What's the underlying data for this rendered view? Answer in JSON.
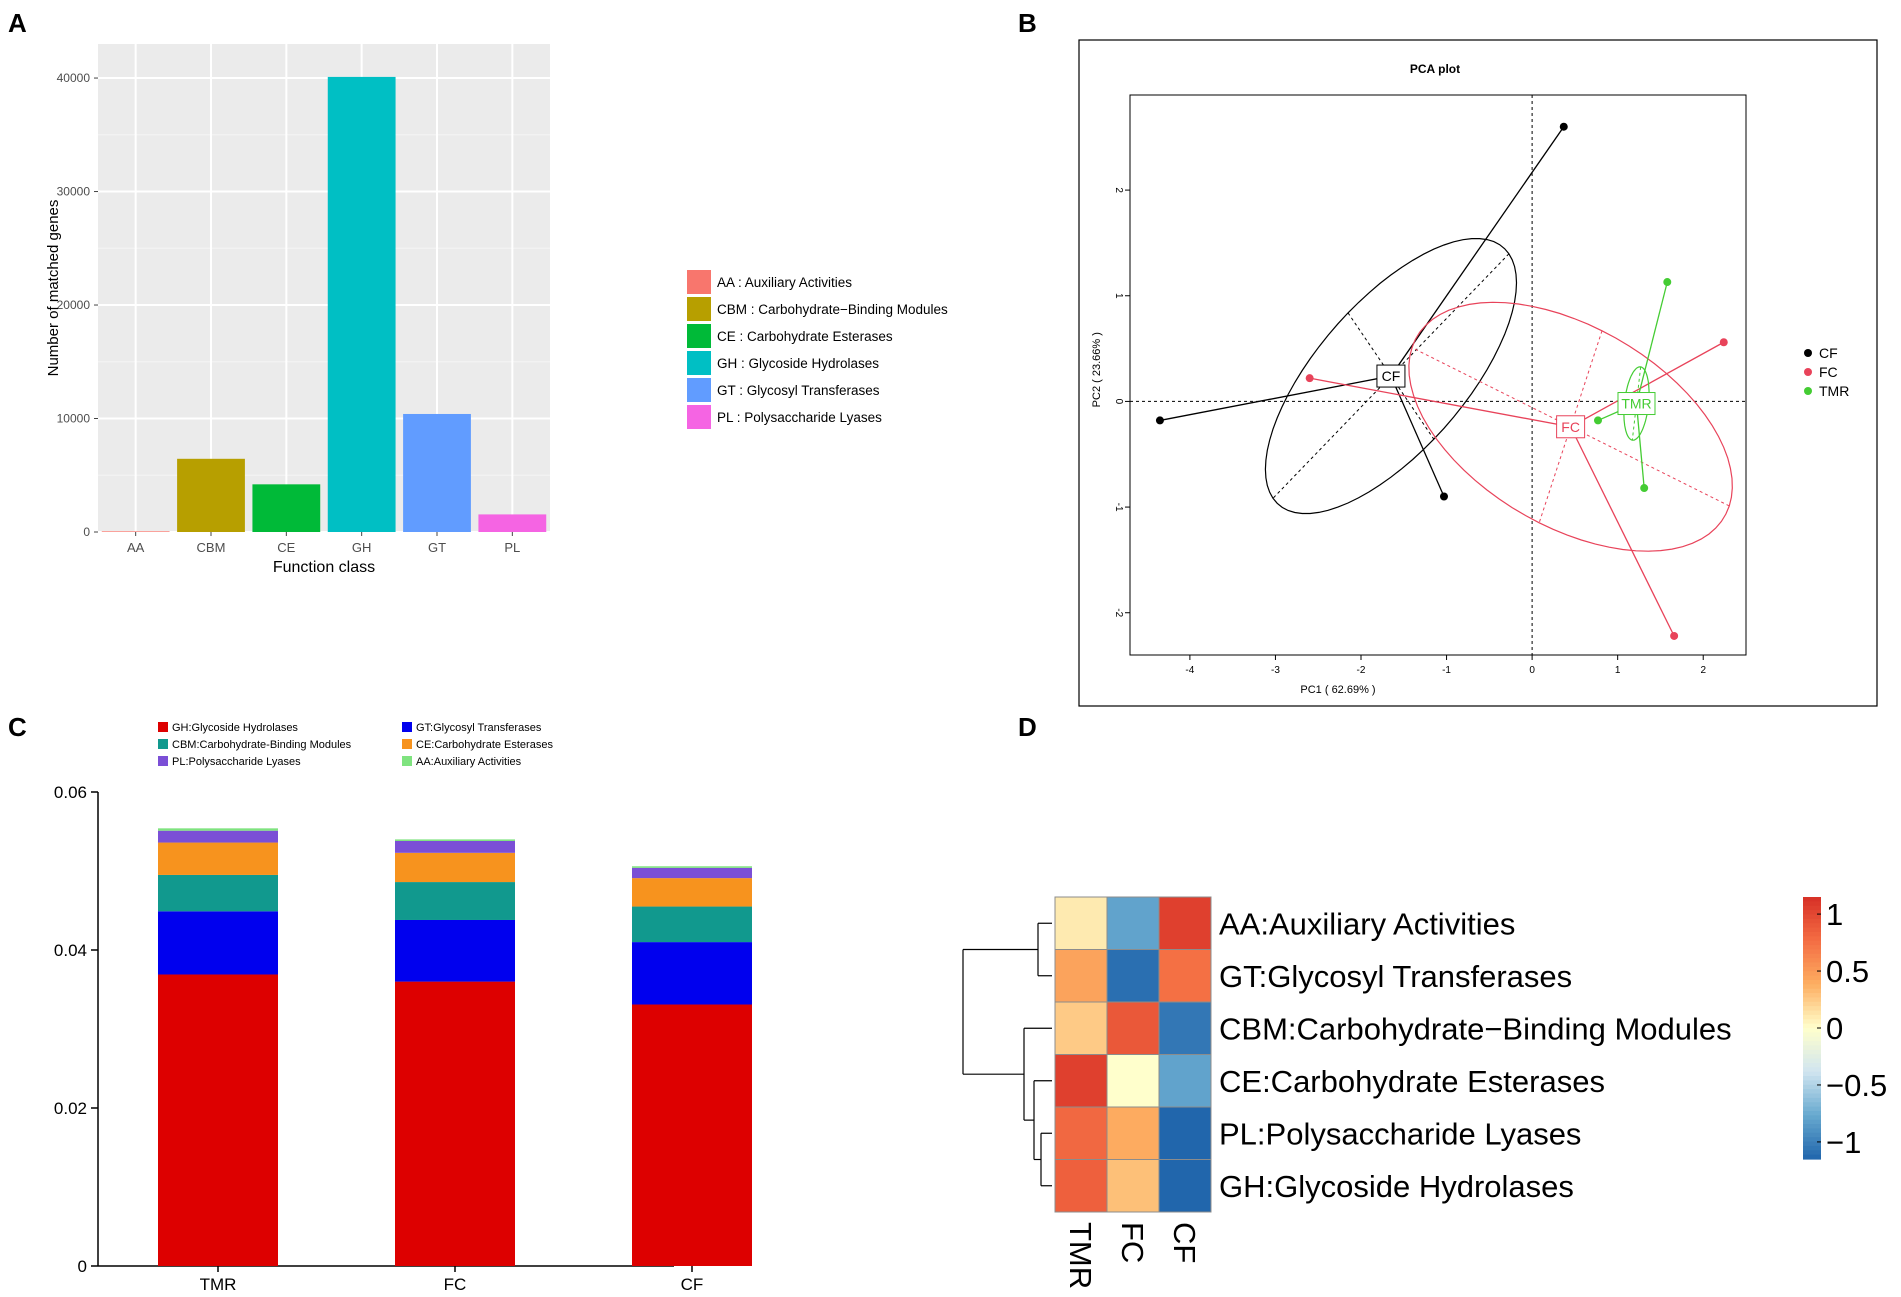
{
  "panels": {
    "a": "A",
    "b": "B",
    "c": "C",
    "d": "D"
  },
  "chart_data": [
    {
      "panel": "A",
      "type": "bar",
      "xlabel": "Function class",
      "ylabel": "Number of matched genes",
      "ylim": [
        0,
        43000
      ],
      "yticks": [
        {
          "v": 0,
          "label": "0"
        },
        {
          "v": 10000,
          "label": "10000"
        },
        {
          "v": 20000,
          "label": "20000"
        },
        {
          "v": 30000,
          "label": "30000"
        },
        {
          "v": 40000,
          "label": "40000"
        }
      ],
      "categories": [
        "AA",
        "CBM",
        "CE",
        "GH",
        "GT",
        "PL"
      ],
      "values": [
        60,
        6450,
        4200,
        40100,
        10400,
        1550
      ],
      "colors": [
        "#f8766d",
        "#b79f00",
        "#00ba38",
        "#00bfc4",
        "#619cff",
        "#f564e3"
      ],
      "legend": [
        "AA : Auxiliary Activities",
        "CBM : Carbohydrate−Binding Modules",
        "CE : Carbohydrate Esterases",
        "GH : Glycoside Hydrolases",
        "GT : Glycosyl Transferases",
        "PL : Polysaccharide Lyases"
      ]
    },
    {
      "panel": "B",
      "type": "scatter",
      "title": "PCA plot",
      "xlabel": "PC1 ( 62.69% )",
      "ylabel": "PC2 ( 23.66% )",
      "xlim": [
        -4.7,
        2.5
      ],
      "ylim": [
        -2.4,
        2.9
      ],
      "xticks": [
        {
          "v": -4,
          "label": "-4"
        },
        {
          "v": -3,
          "label": "-3"
        },
        {
          "v": -2,
          "label": "-2"
        },
        {
          "v": -1,
          "label": "-1"
        },
        {
          "v": 0,
          "label": "0"
        },
        {
          "v": 1,
          "label": "1"
        },
        {
          "v": 2,
          "label": "2"
        }
      ],
      "yticks": [
        {
          "v": -2,
          "label": "-2"
        },
        {
          "v": -1,
          "label": "-1"
        },
        {
          "v": 0,
          "label": "0"
        },
        {
          "v": 1,
          "label": "1"
        },
        {
          "v": 2,
          "label": "2"
        }
      ],
      "groups": [
        {
          "name": "CF",
          "color": "#000000",
          "centroid": [
            -1.65,
            0.24
          ],
          "points": [
            [
              0.37,
              2.6
            ],
            [
              -4.35,
              -0.18
            ],
            [
              -1.03,
              -0.9
            ]
          ],
          "ellipse": {
            "cx": -1.65,
            "cy": 0.24,
            "a": 1.8,
            "b": 0.78,
            "angle": 40
          }
        },
        {
          "name": "FC",
          "color": "#e8435a",
          "centroid": [
            0.45,
            -0.24
          ],
          "points": [
            [
              -2.6,
              0.22
            ],
            [
              2.24,
              0.56
            ],
            [
              1.66,
              -2.22
            ]
          ],
          "ellipse": {
            "cx": 0.45,
            "cy": -0.24,
            "a": 2.0,
            "b": 0.98,
            "angle": -22
          }
        },
        {
          "name": "TMR",
          "color": "#44cc33",
          "centroid": [
            1.22,
            -0.02
          ],
          "points": [
            [
              1.58,
              1.13
            ],
            [
              0.77,
              -0.18
            ],
            [
              1.31,
              -0.82
            ]
          ],
          "ellipse": {
            "cx": 1.22,
            "cy": -0.02,
            "a": 0.35,
            "b": 0.14,
            "angle": 82
          }
        }
      ]
    },
    {
      "panel": "C",
      "type": "bar",
      "stacked": true,
      "categories": [
        "TMR",
        "FC",
        "CF"
      ],
      "ylim": [
        0,
        0.06
      ],
      "yticks": [
        {
          "v": 0,
          "label": "0"
        },
        {
          "v": 0.02,
          "label": "0.02"
        },
        {
          "v": 0.04,
          "label": "0.04"
        },
        {
          "v": 0.06,
          "label": "0.06"
        }
      ],
      "series": [
        {
          "name": "GH:Glycoside Hydrolases",
          "color": "#dd0000",
          "values": [
            0.0369,
            0.036,
            0.0331
          ]
        },
        {
          "name": "GT:Glycosyl Transferases",
          "color": "#0000ee",
          "values": [
            0.008,
            0.0078,
            0.0079
          ]
        },
        {
          "name": "CBM:Carbohydrate-Binding Modules",
          "color": "#11998e",
          "values": [
            0.0046,
            0.0048,
            0.0045
          ]
        },
        {
          "name": "CE:Carbohydrate Esterases",
          "color": "#f7931e",
          "values": [
            0.0041,
            0.0037,
            0.0036
          ]
        },
        {
          "name": "PL:Polysaccharide Lyases",
          "color": "#7b4fd6",
          "values": [
            0.0015,
            0.0015,
            0.0013
          ]
        },
        {
          "name": "AA:Auxiliary Activities",
          "color": "#7fe37f",
          "values": [
            0.0003,
            0.0002,
            0.0002
          ]
        }
      ]
    },
    {
      "panel": "D",
      "type": "heatmap",
      "columns": [
        "TMR",
        "FC",
        "CF"
      ],
      "rows": [
        "AA:Auxiliary Activities",
        "GT:Glycosyl Transferases",
        "CBM:Carbohydrate−Binding Modules",
        "CE:Carbohydrate Esterases",
        "PL:Polysaccharide Lyases",
        "GH:Glycoside Hydrolases"
      ],
      "values": [
        [
          0.1,
          -0.8,
          1.05
        ],
        [
          0.45,
          -1.1,
          0.75
        ],
        [
          0.25,
          0.9,
          -1.05
        ],
        [
          1.05,
          0.0,
          -0.8
        ],
        [
          0.8,
          0.4,
          -1.15
        ],
        [
          0.85,
          0.3,
          -1.15
        ]
      ],
      "colorbar": {
        "range": [
          -1.15,
          1.15
        ],
        "ticks": [
          {
            "v": 1,
            "label": "1"
          },
          {
            "v": 0.5,
            "label": "0.5"
          },
          {
            "v": 0,
            "label": "0"
          },
          {
            "v": -0.5,
            "label": "−0.5"
          },
          {
            "v": -1,
            "label": "−1"
          }
        ],
        "colors": [
          "#2166ac",
          "#67a9cf",
          "#d1e5f0",
          "#ffffcc",
          "#fdae61",
          "#f46d43",
          "#d73027"
        ]
      }
    }
  ]
}
